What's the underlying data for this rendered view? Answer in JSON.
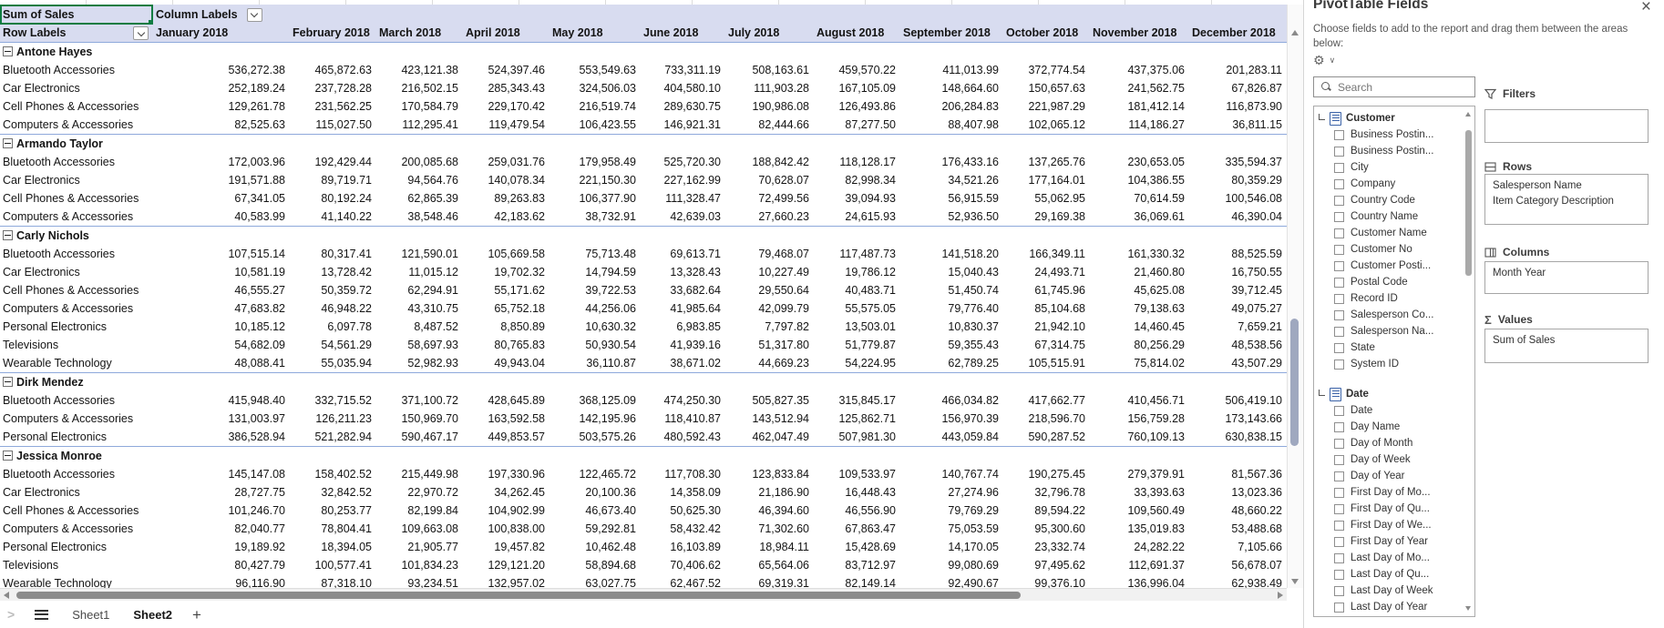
{
  "spreadsheet": {
    "corner_cell": "Sum of Sales",
    "column_labels_header": "Column Labels",
    "row_labels_header": "Row Labels",
    "months": [
      "January 2018",
      "February 2018",
      "March 2018",
      "April 2018",
      "May 2018",
      "June 2018",
      "July 2018",
      "August 2018",
      "September 2018",
      "October 2018",
      "November 2018",
      "December 2018"
    ],
    "groups": [
      {
        "name": "Antone Hayes",
        "rows": [
          {
            "category": "Bluetooth Accessories",
            "values": [
              "536,272.38",
              "465,872.63",
              "423,121.38",
              "524,397.46",
              "553,549.63",
              "733,311.19",
              "508,163.61",
              "459,570.22",
              "411,013.99",
              "372,774.54",
              "437,375.06",
              "201,283.11"
            ]
          },
          {
            "category": "Car Electronics",
            "values": [
              "252,189.24",
              "237,728.28",
              "216,502.15",
              "285,343.43",
              "324,506.03",
              "404,580.10",
              "111,903.28",
              "167,105.09",
              "148,664.60",
              "150,657.63",
              "241,562.75",
              "67,826.87"
            ]
          },
          {
            "category": "Cell Phones & Accessories",
            "values": [
              "129,261.78",
              "231,562.25",
              "170,584.79",
              "229,170.42",
              "216,519.74",
              "289,630.75",
              "190,986.08",
              "126,493.86",
              "206,284.83",
              "221,987.29",
              "181,412.14",
              "116,873.90"
            ]
          },
          {
            "category": "Computers & Accessories",
            "values": [
              "82,525.63",
              "115,027.50",
              "112,295.41",
              "119,479.54",
              "106,423.55",
              "146,921.31",
              "82,444.66",
              "87,277.50",
              "88,407.98",
              "102,065.12",
              "114,186.27",
              "36,811.15"
            ]
          }
        ]
      },
      {
        "name": "Armando Taylor",
        "rows": [
          {
            "category": "Bluetooth Accessories",
            "values": [
              "172,003.96",
              "192,429.44",
              "200,085.68",
              "259,031.76",
              "179,958.49",
              "525,720.30",
              "188,842.42",
              "118,128.17",
              "176,433.16",
              "137,265.76",
              "230,653.05",
              "335,594.37"
            ]
          },
          {
            "category": "Car Electronics",
            "values": [
              "191,571.88",
              "89,719.71",
              "94,564.76",
              "140,078.34",
              "221,150.30",
              "227,162.99",
              "70,628.07",
              "82,998.34",
              "34,521.26",
              "177,164.01",
              "104,386.55",
              "80,359.29"
            ]
          },
          {
            "category": "Cell Phones & Accessories",
            "values": [
              "67,341.05",
              "80,192.24",
              "62,865.39",
              "89,263.83",
              "106,377.90",
              "111,328.47",
              "72,499.56",
              "39,094.93",
              "56,915.59",
              "55,062.95",
              "70,614.59",
              "100,546.08"
            ]
          },
          {
            "category": "Computers & Accessories",
            "values": [
              "40,583.99",
              "41,140.22",
              "38,548.46",
              "42,183.62",
              "38,732.91",
              "42,639.03",
              "27,660.23",
              "24,615.93",
              "52,936.50",
              "29,169.38",
              "36,069.61",
              "46,390.04"
            ]
          }
        ]
      },
      {
        "name": "Carly Nichols",
        "rows": [
          {
            "category": "Bluetooth Accessories",
            "values": [
              "107,515.14",
              "80,317.41",
              "121,590.01",
              "105,669.58",
              "75,713.48",
              "69,613.71",
              "79,468.07",
              "117,487.73",
              "141,518.20",
              "166,349.11",
              "161,330.32",
              "88,525.59"
            ]
          },
          {
            "category": "Car Electronics",
            "values": [
              "10,581.19",
              "13,728.42",
              "11,015.12",
              "19,702.32",
              "14,794.59",
              "13,328.43",
              "10,227.49",
              "19,786.12",
              "15,040.43",
              "24,493.71",
              "21,460.80",
              "16,750.55"
            ]
          },
          {
            "category": "Cell Phones & Accessories",
            "values": [
              "46,555.27",
              "50,359.72",
              "62,294.91",
              "55,171.62",
              "39,722.53",
              "33,682.64",
              "29,550.64",
              "40,483.71",
              "51,450.74",
              "61,745.96",
              "45,625.08",
              "39,712.45"
            ]
          },
          {
            "category": "Computers & Accessories",
            "values": [
              "47,683.82",
              "46,948.22",
              "43,310.75",
              "65,752.18",
              "44,256.06",
              "41,985.64",
              "42,099.79",
              "55,575.05",
              "79,776.40",
              "85,104.68",
              "79,138.63",
              "49,075.27"
            ]
          },
          {
            "category": "Personal Electronics",
            "values": [
              "10,185.12",
              "6,097.78",
              "8,487.52",
              "8,850.89",
              "10,630.32",
              "6,983.85",
              "7,797.82",
              "13,503.01",
              "10,830.37",
              "21,942.10",
              "14,460.45",
              "7,659.21"
            ]
          },
          {
            "category": "Televisions",
            "values": [
              "54,682.09",
              "54,561.29",
              "58,697.93",
              "80,765.83",
              "50,930.54",
              "41,939.16",
              "51,317.80",
              "51,779.87",
              "59,355.43",
              "67,314.75",
              "80,256.29",
              "48,538.56"
            ]
          },
          {
            "category": "Wearable Technology",
            "values": [
              "48,088.41",
              "55,035.94",
              "52,982.93",
              "49,943.04",
              "36,110.87",
              "38,671.02",
              "44,669.23",
              "54,224.95",
              "62,789.25",
              "105,515.91",
              "75,814.02",
              "43,507.29"
            ]
          }
        ]
      },
      {
        "name": "Dirk Mendez",
        "rows": [
          {
            "category": "Bluetooth Accessories",
            "values": [
              "415,948.40",
              "332,715.52",
              "371,100.72",
              "428,645.89",
              "368,125.09",
              "474,250.30",
              "505,827.35",
              "315,845.17",
              "466,034.82",
              "417,662.77",
              "410,456.71",
              "506,419.10"
            ]
          },
          {
            "category": "Computers & Accessories",
            "values": [
              "131,003.97",
              "126,211.23",
              "150,969.70",
              "163,592.58",
              "142,195.96",
              "118,410.87",
              "143,512.94",
              "125,862.71",
              "156,970.39",
              "218,596.70",
              "156,759.28",
              "173,143.66"
            ]
          },
          {
            "category": "Personal Electronics",
            "values": [
              "386,528.94",
              "521,282.94",
              "590,467.17",
              "449,853.57",
              "503,575.26",
              "480,592.43",
              "462,047.49",
              "507,981.30",
              "443,059.84",
              "590,287.52",
              "760,109.13",
              "630,838.15"
            ]
          }
        ]
      },
      {
        "name": "Jessica Monroe",
        "rows": [
          {
            "category": "Bluetooth Accessories",
            "values": [
              "145,147.08",
              "158,402.52",
              "215,449.98",
              "197,330.96",
              "122,465.72",
              "117,708.30",
              "123,833.84",
              "109,533.97",
              "140,767.74",
              "190,275.45",
              "279,379.91",
              "81,567.36"
            ]
          },
          {
            "category": "Car Electronics",
            "values": [
              "28,727.75",
              "32,842.52",
              "22,970.72",
              "34,262.45",
              "20,100.36",
              "14,358.09",
              "21,186.90",
              "16,448.43",
              "27,274.96",
              "32,796.78",
              "33,393.63",
              "13,023.36"
            ]
          },
          {
            "category": "Cell Phones & Accessories",
            "values": [
              "101,246.70",
              "80,253.77",
              "82,199.84",
              "104,902.99",
              "46,673.40",
              "50,625.30",
              "46,394.60",
              "46,556.90",
              "79,769.29",
              "89,594.22",
              "109,560.49",
              "48,660.22"
            ]
          },
          {
            "category": "Computers & Accessories",
            "values": [
              "82,040.77",
              "78,804.41",
              "109,663.08",
              "100,838.00",
              "59,292.81",
              "58,432.42",
              "71,302.60",
              "67,863.47",
              "75,053.59",
              "95,300.60",
              "135,019.83",
              "53,488.68"
            ]
          },
          {
            "category": "Personal Electronics",
            "values": [
              "19,189.92",
              "18,394.05",
              "21,905.77",
              "19,457.82",
              "10,462.48",
              "16,103.89",
              "18,984.11",
              "15,428.69",
              "14,170.05",
              "23,332.74",
              "24,282.22",
              "7,105.66"
            ]
          },
          {
            "category": "Televisions",
            "values": [
              "80,427.79",
              "100,577.41",
              "101,834.23",
              "129,121.20",
              "58,894.68",
              "70,406.62",
              "65,564.06",
              "83,712.97",
              "99,080.69",
              "97,495.62",
              "112,691.37",
              "56,678.07"
            ]
          },
          {
            "category": "Wearable Technology",
            "values": [
              "96,116.90",
              "87,318.10",
              "93,234.51",
              "132,957.02",
              "63,027.75",
              "62,467.52",
              "69,319.31",
              "82,149.14",
              "92,490.67",
              "99,376.10",
              "136,996.04",
              "62,938.49"
            ]
          }
        ]
      }
    ]
  },
  "sheet_bar": {
    "tabs": [
      {
        "label": "Sheet1",
        "active": false
      },
      {
        "label": "Sheet2",
        "active": true
      }
    ],
    "add_button": "+",
    "nav_chevron": ">"
  },
  "panel": {
    "title": "PivotTable Fields",
    "close_glyph": "×",
    "subtitle": "Choose fields to add to the report and drag them between the areas below:",
    "gear_glyph": "⚙",
    "gear_chevron": "∨",
    "search_placeholder": "Search",
    "field_groups": [
      {
        "name": "Customer",
        "fields": [
          "Business Postin...",
          "Business Postin...",
          "City",
          "Company",
          "Country Code",
          "Country Name",
          "Customer Name",
          "Customer No",
          "Customer Posti...",
          "Postal Code",
          "Record ID",
          "Salesperson Co...",
          "Salesperson Na...",
          "State",
          "System ID"
        ]
      },
      {
        "name": "Date",
        "fields": [
          "Date",
          "Day Name",
          "Day of Month",
          "Day of Week",
          "Day of Year",
          "First Day of Mo...",
          "First Day of Qu...",
          "First Day of We...",
          "First Day of Year",
          "Last Day of Mo...",
          "Last Day of Qu...",
          "Last Day of Week",
          "Last Day of Year"
        ]
      }
    ],
    "areas": {
      "filters": {
        "label": "Filters",
        "items": []
      },
      "rows": {
        "label": "Rows",
        "items": [
          "Salesperson Name",
          "Item Category Description"
        ]
      },
      "columns": {
        "label": "Columns",
        "items": [
          "Month Year"
        ]
      },
      "values": {
        "label": "Values",
        "items": [
          "Sum of Sales"
        ]
      }
    }
  },
  "colors": {
    "header_fill": "#D8DCF0",
    "group_border": "#8EA9DB",
    "selection_green": "#107C41",
    "field_icon_blue": "#3A62A7"
  }
}
